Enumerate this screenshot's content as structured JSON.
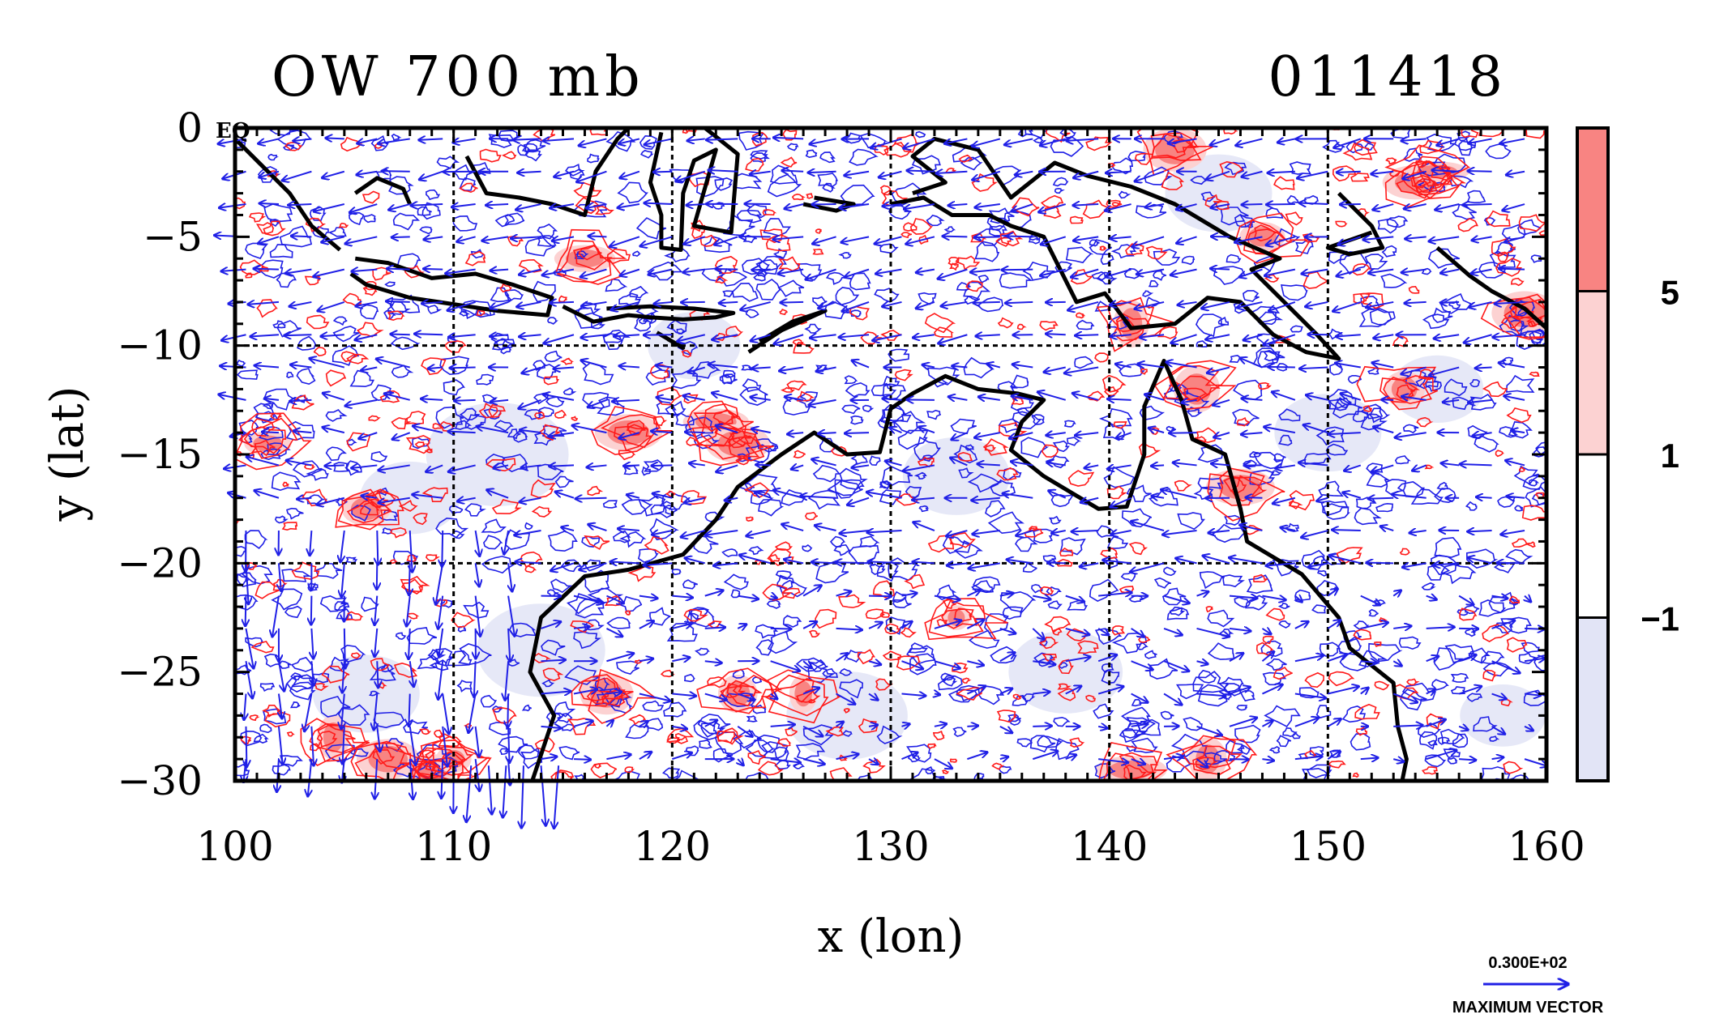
{
  "chart_data": {
    "type": "heatmap",
    "title_left": "OW 700 mb",
    "title_right": "011418",
    "xlabel": "x (lon)",
    "ylabel": "y (lat)",
    "xlim": [
      100,
      160
    ],
    "ylim": [
      -30,
      0
    ],
    "x_ticks": [
      100,
      110,
      120,
      130,
      140,
      150,
      160
    ],
    "y_ticks": [
      0,
      -5,
      -10,
      -15,
      -20,
      -25,
      -30
    ],
    "x_tick_labels": [
      "100",
      "110",
      "120",
      "130",
      "140",
      "150",
      "160"
    ],
    "y_tick_labels": [
      "0",
      "−5",
      "−10",
      "−15",
      "−20",
      "−25",
      "−30"
    ],
    "grid_lon": [
      110,
      120,
      130,
      140,
      150
    ],
    "grid_lat": [
      -10,
      -20
    ],
    "corner_label": "EQ",
    "colorbar": {
      "levels": [
        -1,
        1,
        5
      ],
      "labels": [
        "−1",
        "1",
        "5"
      ],
      "bands": [
        {
          "color": "#e2e4f6"
        },
        {
          "color": "#ffffff"
        },
        {
          "color": "#fcd2d2"
        },
        {
          "color": "#f88482"
        }
      ]
    },
    "contour_colors": {
      "positive": "#ff1a1a",
      "negative": "#1f1fe6",
      "coast": "#000000"
    },
    "vector_legend": {
      "value": "0.300E+02",
      "label": "MAXIMUM VECTOR",
      "color": "#1f1fe6"
    }
  }
}
